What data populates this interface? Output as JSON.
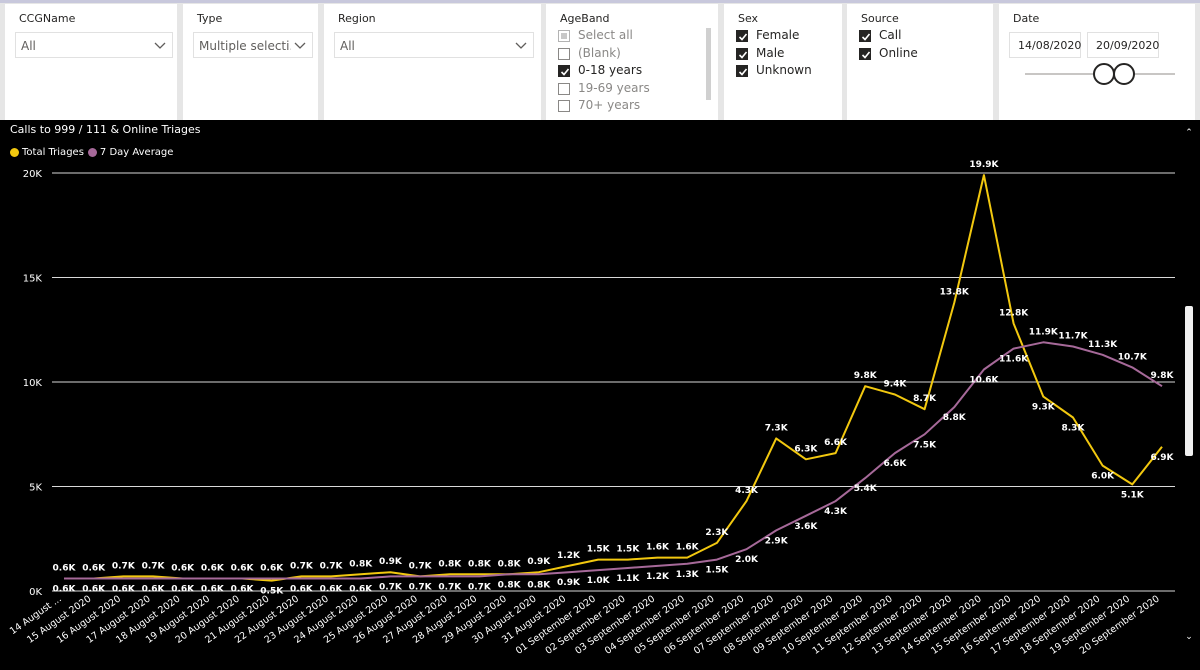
{
  "filters": {
    "ccg": {
      "title": "CCGName",
      "value": "All"
    },
    "type": {
      "title": "Type",
      "value": "Multiple selecti..."
    },
    "region": {
      "title": "Region",
      "value": "All"
    },
    "ageband": {
      "title": "AgeBand",
      "options": [
        {
          "label": "Select all",
          "state": "partial"
        },
        {
          "label": "(Blank)",
          "state": "unchecked"
        },
        {
          "label": "0-18 years",
          "state": "checked"
        },
        {
          "label": "19-69 years",
          "state": "unchecked"
        },
        {
          "label": "70+ years",
          "state": "unchecked"
        }
      ]
    },
    "sex": {
      "title": "Sex",
      "options": [
        {
          "label": "Female",
          "state": "checked"
        },
        {
          "label": "Male",
          "state": "checked"
        },
        {
          "label": "Unknown",
          "state": "checked"
        }
      ]
    },
    "source": {
      "title": "Source",
      "options": [
        {
          "label": "Call",
          "state": "checked"
        },
        {
          "label": "Online",
          "state": "checked"
        }
      ]
    },
    "date": {
      "title": "Date",
      "start": "14/08/2020",
      "end": "20/09/2020"
    }
  },
  "chart_data": {
    "type": "line",
    "title": "Calls to 999 / 111 & Online Triages",
    "legend_position": "top-left",
    "grid": true,
    "ylim": [
      0,
      20000
    ],
    "yticks": [
      {
        "value": 0,
        "label": "0K"
      },
      {
        "value": 5000,
        "label": "5K"
      },
      {
        "value": 10000,
        "label": "10K"
      },
      {
        "value": 15000,
        "label": "15K"
      },
      {
        "value": 20000,
        "label": "20K"
      }
    ],
    "categories": [
      "14 August ...",
      "15 August 2020",
      "16 August 2020",
      "17 August 2020",
      "18 August 2020",
      "19 August 2020",
      "20 August 2020",
      "21 August 2020",
      "22 August 2020",
      "23 August 2020",
      "24 August 2020",
      "25 August 2020",
      "26 August 2020",
      "27 August 2020",
      "28 August 2020",
      "29 August 2020",
      "30 August 2020",
      "31 August 2020",
      "01 September 2020",
      "02 September 2020",
      "03 September 2020",
      "04 September 2020",
      "05 September 2020",
      "06 September 2020",
      "07 September 2020",
      "08 September 2020",
      "09 September 2020",
      "10 September 2020",
      "11 September 2020",
      "12 September 2020",
      "13 September 2020",
      "14 September 2020",
      "15 September 2020",
      "16 September 2020",
      "17 September 2020",
      "18 September 2020",
      "19 September 2020",
      "20 September 2020"
    ],
    "series": [
      {
        "name": "Total Triages",
        "color": "#f2c80f",
        "values": [
          600,
          600,
          700,
          700,
          600,
          600,
          600,
          500,
          700,
          700,
          800,
          900,
          700,
          800,
          800,
          800,
          900,
          1200,
          1500,
          1500,
          1600,
          1600,
          2300,
          4300,
          7300,
          6300,
          6600,
          9800,
          9400,
          8700,
          13800,
          19900,
          12800,
          9300,
          8300,
          6000,
          5100,
          6900
        ],
        "labels": [
          "0.6K",
          "0.6K",
          "0.7K",
          "0.7K",
          "0.6K",
          "0.6K",
          "0.6K",
          "0.5K",
          "0.7K",
          "0.7K",
          "0.8K",
          "0.9K",
          "0.7K",
          "0.8K",
          "0.8K",
          "0.8K",
          "0.9K",
          "1.2K",
          "1.5K",
          "1.5K",
          "1.6K",
          "1.6K",
          "2.3K",
          "4.3K",
          "7.3K",
          "6.3K",
          "6.6K",
          "9.8K",
          "9.4K",
          "8.7K",
          "13.8K",
          "19.9K",
          "12.8K",
          "9.3K",
          "8.3K",
          "6.0K",
          "5.1K",
          "6.9K"
        ]
      },
      {
        "name": "7 Day Average",
        "color": "#a66999",
        "values": [
          600,
          600,
          600,
          600,
          600,
          600,
          600,
          600,
          600,
          600,
          600,
          700,
          700,
          700,
          700,
          800,
          800,
          900,
          1000,
          1100,
          1200,
          1300,
          1500,
          2000,
          2900,
          3600,
          4300,
          5400,
          6600,
          7500,
          8800,
          10600,
          11600,
          11900,
          11700,
          11300,
          10700,
          9800
        ],
        "labels": [
          "0.6K",
          "0.6K",
          "0.6K",
          "0.6K",
          "0.6K",
          "0.6K",
          "0.6K",
          "0.6K",
          "0.6K",
          "0.6K",
          "0.6K",
          "0.7K",
          "0.7K",
          "0.7K",
          "0.7K",
          "0.8K",
          "0.8K",
          "0.9K",
          "1.0K",
          "1.1K",
          "1.2K",
          "1.3K",
          "1.5K",
          "2.0K",
          "2.9K",
          "3.6K",
          "4.3K",
          "5.4K",
          "6.6K",
          "7.5K",
          "8.8K",
          "10.6K",
          "11.6K",
          "11.9K",
          "11.7K",
          "11.3K",
          "10.7K",
          "9.8K"
        ]
      }
    ]
  }
}
